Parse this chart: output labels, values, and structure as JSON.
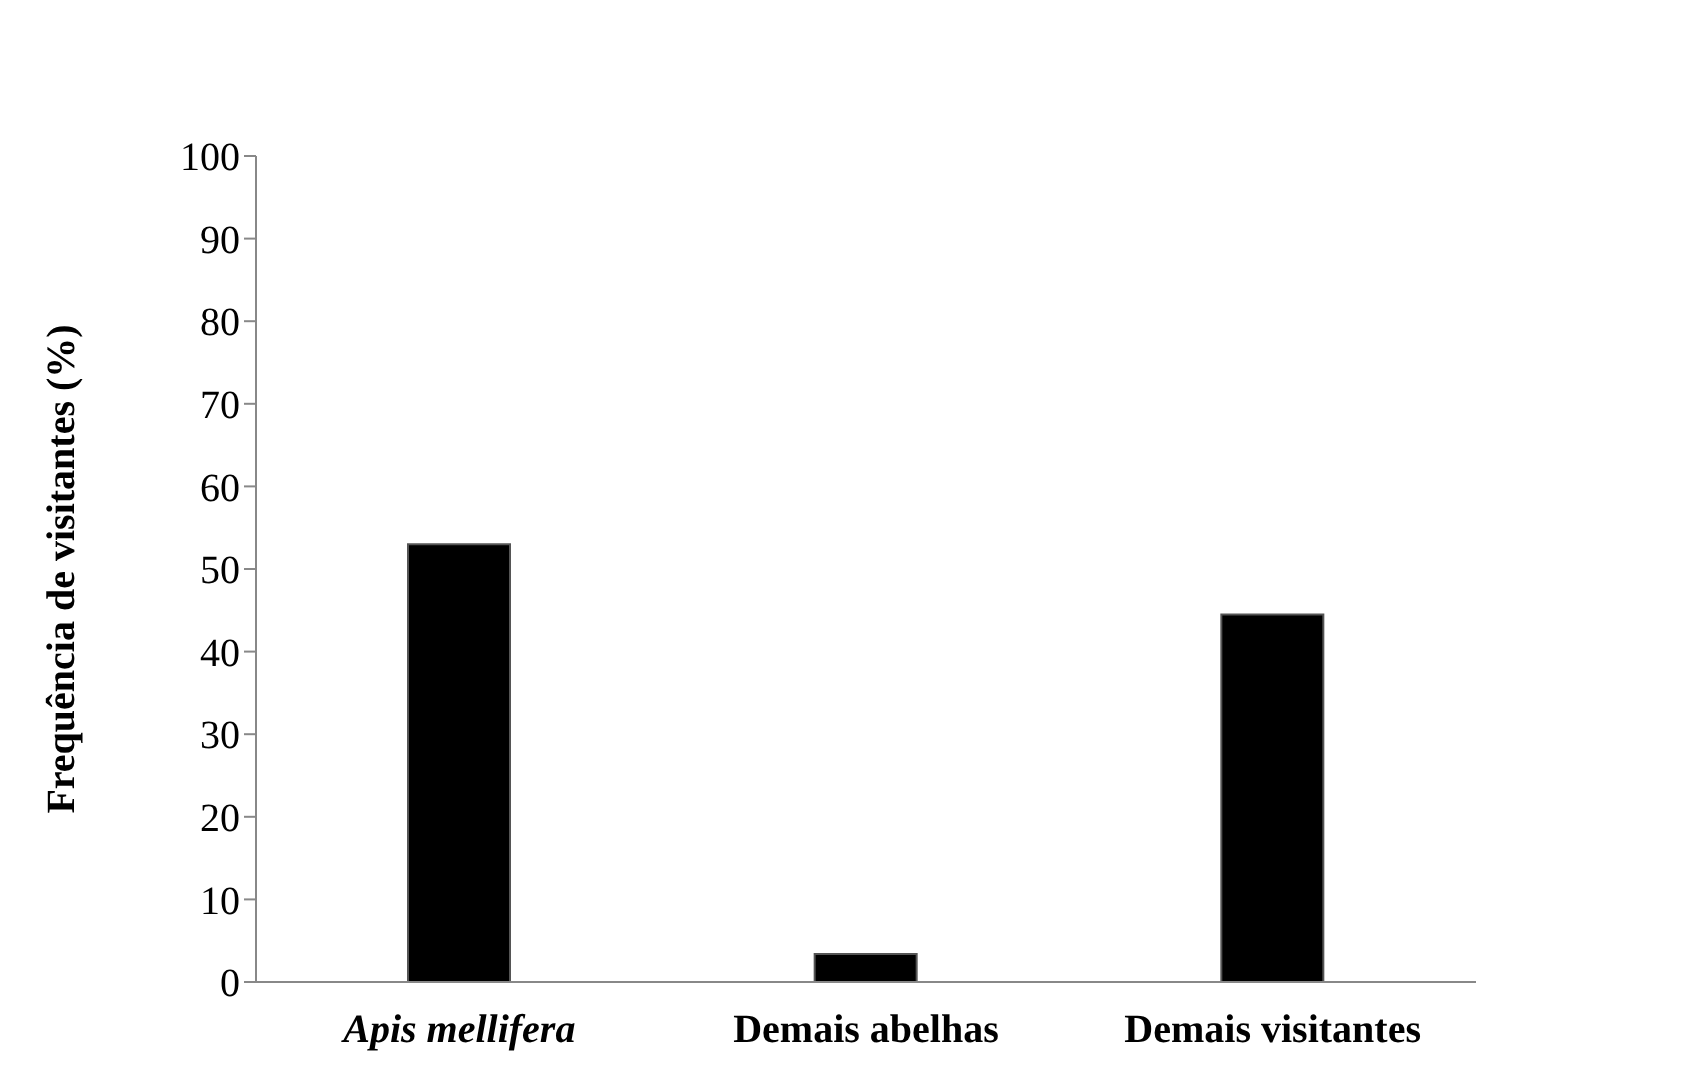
{
  "chart_data": {
    "type": "bar",
    "ylabel": "Frequência  de  visitantes  (%)",
    "categories": [
      "Apis mellifera",
      "Demais abelhas",
      "Demais visitantes"
    ],
    "values": [
      53,
      3.4,
      44.5
    ],
    "color": "#000000",
    "ylim": [
      0,
      100
    ],
    "yticks": [
      0,
      10,
      20,
      30,
      40,
      50,
      60,
      70,
      80,
      90,
      100
    ],
    "grid": false
  }
}
